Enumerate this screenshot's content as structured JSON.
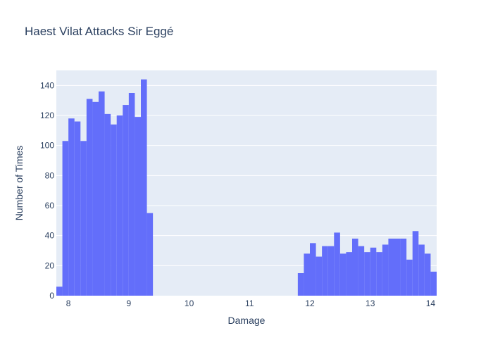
{
  "chart_data": {
    "type": "bar",
    "title": "Haest Vilat Attacks Sir Eggé",
    "xlabel": "Damage",
    "ylabel": "Number of Times",
    "xlim": [
      7.8,
      14.1
    ],
    "ylim": [
      0,
      150
    ],
    "xticks": [
      8,
      9,
      10,
      11,
      12,
      13,
      14
    ],
    "yticks": [
      0,
      20,
      40,
      60,
      80,
      100,
      120,
      140
    ],
    "bin_width": 0.1,
    "grid": true,
    "colors": {
      "bar": "#636efa",
      "plot_bg": "#e5ecf6",
      "grid": "#ffffff",
      "text": "#2a3f5f"
    },
    "bins": [
      {
        "x0": 7.8,
        "value": 6
      },
      {
        "x0": 7.9,
        "value": 103
      },
      {
        "x0": 8.0,
        "value": 118
      },
      {
        "x0": 8.1,
        "value": 116
      },
      {
        "x0": 8.2,
        "value": 103
      },
      {
        "x0": 8.3,
        "value": 131
      },
      {
        "x0": 8.4,
        "value": 129
      },
      {
        "x0": 8.5,
        "value": 136
      },
      {
        "x0": 8.6,
        "value": 121
      },
      {
        "x0": 8.7,
        "value": 114
      },
      {
        "x0": 8.8,
        "value": 120
      },
      {
        "x0": 8.9,
        "value": 127
      },
      {
        "x0": 9.0,
        "value": 135
      },
      {
        "x0": 9.1,
        "value": 119
      },
      {
        "x0": 9.2,
        "value": 144
      },
      {
        "x0": 9.3,
        "value": 55
      },
      {
        "x0": 11.8,
        "value": 15
      },
      {
        "x0": 11.9,
        "value": 28
      },
      {
        "x0": 12.0,
        "value": 35
      },
      {
        "x0": 12.1,
        "value": 26
      },
      {
        "x0": 12.2,
        "value": 33
      },
      {
        "x0": 12.3,
        "value": 33
      },
      {
        "x0": 12.4,
        "value": 42
      },
      {
        "x0": 12.5,
        "value": 28
      },
      {
        "x0": 12.6,
        "value": 29
      },
      {
        "x0": 12.7,
        "value": 38
      },
      {
        "x0": 12.8,
        "value": 33
      },
      {
        "x0": 12.9,
        "value": 29
      },
      {
        "x0": 13.0,
        "value": 32
      },
      {
        "x0": 13.1,
        "value": 29
      },
      {
        "x0": 13.2,
        "value": 34
      },
      {
        "x0": 13.3,
        "value": 38
      },
      {
        "x0": 13.4,
        "value": 38
      },
      {
        "x0": 13.5,
        "value": 38
      },
      {
        "x0": 13.6,
        "value": 24
      },
      {
        "x0": 13.7,
        "value": 43
      },
      {
        "x0": 13.8,
        "value": 34
      },
      {
        "x0": 13.9,
        "value": 28
      },
      {
        "x0": 14.0,
        "value": 16
      }
    ]
  }
}
